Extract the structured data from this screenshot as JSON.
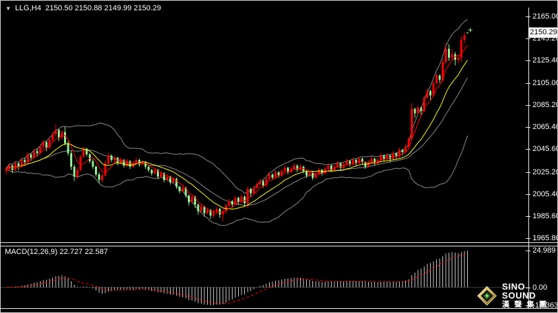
{
  "title": {
    "dropdown_icon": "▼",
    "symbol": "LLG,H4",
    "ohlc": "2150.50 2150.88 2149.99 2150.29"
  },
  "price_axis": {
    "ticks": [
      "2165.00",
      "2145.20",
      "2125.40",
      "2105.00",
      "2085.20",
      "2065.40",
      "2045.60",
      "2025.20",
      "2005.40",
      "1985.60",
      "1965.80"
    ],
    "current_price": "2150.29"
  },
  "macd_panel": {
    "label": "MACD(12,26,9) 22.727 22.587",
    "axis": {
      "max": "24.989",
      "zero": "0.00",
      "min": "-12.363"
    }
  },
  "logo": {
    "name": "SINO SOUND",
    "cn": "漢聲集團"
  },
  "colors": {
    "background": "#000000",
    "bull_candle": "#ff0000",
    "bear_candle": "#90ee90",
    "band": "#8a8a8a",
    "ma_fast": "#ff0000",
    "ma_slow": "#ffff00",
    "macd_histogram": "#c8c8c8",
    "macd_signal": "#ff0000",
    "axis_text": "#ffffff",
    "badge_bg": "#ffffff",
    "badge_text": "#000000"
  },
  "chart_data": {
    "type": "candlestick",
    "symbol": "LLG",
    "timeframe": "H4",
    "last_bar": {
      "open": 2150.5,
      "high": 2150.88,
      "low": 2149.99,
      "close": 2150.29
    },
    "y_axis_ticks": [
      2165.0,
      2145.2,
      2125.4,
      2105.0,
      2085.2,
      2065.4,
      2045.6,
      2025.2,
      2005.4,
      1985.6,
      1965.8
    ],
    "y_range": [
      1962,
      2173
    ],
    "overlays": [
      {
        "name": "bollinger-bands",
        "period": 20,
        "deviation": 2,
        "color": "#8a8a8a"
      },
      {
        "name": "ma-fast",
        "period": 5,
        "color": "#ff0000"
      },
      {
        "name": "ma-slow",
        "period": 13,
        "color": "#ffff00"
      }
    ],
    "indicator": {
      "type": "macd",
      "fast": 12,
      "slow": 26,
      "signal": 9,
      "macd_value": 22.727,
      "signal_value": 22.587,
      "scale_max": 24.989,
      "scale_min": -12.363,
      "histogram_color": "#c8c8c8",
      "signal_color": "#ff0000"
    },
    "candles": [
      [
        2026,
        2030,
        2023,
        2028
      ],
      [
        2028,
        2033,
        2026,
        2031
      ],
      [
        2031,
        2032,
        2024,
        2027
      ],
      [
        2027,
        2035,
        2026,
        2033
      ],
      [
        2033,
        2034,
        2027,
        2030
      ],
      [
        2030,
        2038,
        2029,
        2036
      ],
      [
        2036,
        2038,
        2031,
        2034
      ],
      [
        2034,
        2043,
        2033,
        2041
      ],
      [
        2041,
        2042,
        2035,
        2038
      ],
      [
        2038,
        2046,
        2037,
        2044
      ],
      [
        2044,
        2046,
        2039,
        2042
      ],
      [
        2042,
        2050,
        2041,
        2048
      ],
      [
        2048,
        2054,
        2046,
        2052
      ],
      [
        2052,
        2053,
        2044,
        2047
      ],
      [
        2047,
        2056,
        2046,
        2054
      ],
      [
        2054,
        2061,
        2052,
        2059
      ],
      [
        2059,
        2068,
        2057,
        2063
      ],
      [
        2063,
        2064,
        2053,
        2056
      ],
      [
        2056,
        2063,
        2054,
        2061
      ],
      [
        2061,
        2066,
        2049,
        2051
      ],
      [
        2051,
        2053,
        2040,
        2042
      ],
      [
        2042,
        2044,
        2027,
        2030
      ],
      [
        2030,
        2032,
        2017,
        2021
      ],
      [
        2021,
        2029,
        2019,
        2027
      ],
      [
        2027,
        2041,
        2026,
        2039
      ],
      [
        2039,
        2048,
        2038,
        2046
      ],
      [
        2046,
        2047,
        2039,
        2041
      ],
      [
        2041,
        2042,
        2033,
        2035
      ],
      [
        2035,
        2037,
        2028,
        2030
      ],
      [
        2030,
        2031,
        2021,
        2023
      ],
      [
        2023,
        2025,
        2015,
        2018
      ],
      [
        2018,
        2024,
        2016,
        2022
      ],
      [
        2022,
        2035,
        2021,
        2033
      ],
      [
        2033,
        2042,
        2032,
        2040
      ],
      [
        2040,
        2041,
        2034,
        2036
      ],
      [
        2036,
        2040,
        2034,
        2038
      ],
      [
        2038,
        2039,
        2031,
        2033
      ],
      [
        2033,
        2038,
        2032,
        2036
      ],
      [
        2036,
        2037,
        2029,
        2031
      ],
      [
        2031,
        2037,
        2030,
        2035
      ],
      [
        2035,
        2036,
        2028,
        2030
      ],
      [
        2030,
        2035,
        2029,
        2033
      ],
      [
        2033,
        2038,
        2032,
        2036
      ],
      [
        2036,
        2037,
        2030,
        2032
      ],
      [
        2032,
        2036,
        2031,
        2034
      ],
      [
        2034,
        2035,
        2028,
        2030
      ],
      [
        2030,
        2031,
        2025,
        2027
      ],
      [
        2027,
        2028,
        2022,
        2024
      ],
      [
        2024,
        2029,
        2023,
        2027
      ],
      [
        2027,
        2028,
        2019,
        2021
      ],
      [
        2021,
        2026,
        2020,
        2024
      ],
      [
        2024,
        2025,
        2016,
        2018
      ],
      [
        2018,
        2023,
        2017,
        2021
      ],
      [
        2021,
        2022,
        2014,
        2016
      ],
      [
        2016,
        2021,
        2015,
        2019
      ],
      [
        2019,
        2020,
        2010,
        2012
      ],
      [
        2012,
        2013,
        2006,
        2008
      ],
      [
        2008,
        2013,
        2007,
        2011
      ],
      [
        2011,
        2012,
        2002,
        2004
      ],
      [
        2004,
        2005,
        1995,
        1998
      ],
      [
        1998,
        2005,
        1997,
        2003
      ],
      [
        2003,
        2004,
        1993,
        1996
      ],
      [
        1996,
        1997,
        1987,
        1990
      ],
      [
        1990,
        1996,
        1989,
        1994
      ],
      [
        1994,
        1995,
        1985,
        1988
      ],
      [
        1988,
        1993,
        1987,
        1991
      ],
      [
        1991,
        1992,
        1983,
        1986
      ],
      [
        1986,
        1991,
        1984,
        1989
      ],
      [
        1989,
        1994,
        1987,
        1992
      ],
      [
        1992,
        1993,
        1984,
        1987
      ],
      [
        1987,
        1992,
        1981,
        1990
      ],
      [
        1990,
        1997,
        1988,
        1995
      ],
      [
        1995,
        2001,
        1994,
        1999
      ],
      [
        1999,
        2000,
        1993,
        1996
      ],
      [
        1996,
        2004,
        1995,
        2002
      ],
      [
        2002,
        2003,
        1996,
        1998
      ],
      [
        1998,
        2005,
        1997,
        2003
      ],
      [
        2003,
        2004,
        1994,
        1997
      ],
      [
        1997,
        2012,
        1993,
        2010
      ],
      [
        2010,
        2011,
        2003,
        2006
      ],
      [
        2006,
        2013,
        2005,
        2011
      ],
      [
        2011,
        2016,
        2010,
        2014
      ],
      [
        2014,
        2019,
        2013,
        2017
      ],
      [
        2017,
        2018,
        2011,
        2013
      ],
      [
        2013,
        2021,
        2012,
        2019
      ],
      [
        2019,
        2025,
        2018,
        2023
      ],
      [
        2023,
        2024,
        2018,
        2020
      ],
      [
        2020,
        2027,
        2019,
        2025
      ],
      [
        2025,
        2026,
        2020,
        2022
      ],
      [
        2022,
        2028,
        2021,
        2026
      ],
      [
        2026,
        2031,
        2025,
        2029
      ],
      [
        2029,
        2030,
        2023,
        2025
      ],
      [
        2025,
        2030,
        2024,
        2028
      ],
      [
        2028,
        2033,
        2027,
        2031
      ],
      [
        2031,
        2032,
        2025,
        2027
      ],
      [
        2027,
        2032,
        2026,
        2030
      ],
      [
        2030,
        2031,
        2024,
        2026
      ],
      [
        2026,
        2027,
        2020,
        2022
      ],
      [
        2022,
        2027,
        2021,
        2025
      ],
      [
        2025,
        2026,
        2018,
        2020
      ],
      [
        2020,
        2025,
        2019,
        2023
      ],
      [
        2023,
        2029,
        2022,
        2027
      ],
      [
        2027,
        2028,
        2022,
        2024
      ],
      [
        2024,
        2030,
        2023,
        2028
      ],
      [
        2028,
        2033,
        2027,
        2031
      ],
      [
        2031,
        2032,
        2025,
        2027
      ],
      [
        2027,
        2032,
        2026,
        2030
      ],
      [
        2030,
        2035,
        2029,
        2033
      ],
      [
        2033,
        2034,
        2027,
        2029
      ],
      [
        2029,
        2034,
        2028,
        2032
      ],
      [
        2032,
        2037,
        2031,
        2035
      ],
      [
        2035,
        2036,
        2030,
        2032
      ],
      [
        2032,
        2038,
        2031,
        2036
      ],
      [
        2036,
        2037,
        2031,
        2033
      ],
      [
        2033,
        2039,
        2032,
        2037
      ],
      [
        2037,
        2038,
        2032,
        2034
      ],
      [
        2034,
        2035,
        2028,
        2030
      ],
      [
        2030,
        2036,
        2029,
        2034
      ],
      [
        2034,
        2039,
        2033,
        2037
      ],
      [
        2037,
        2038,
        2031,
        2033
      ],
      [
        2033,
        2038,
        2032,
        2036
      ],
      [
        2036,
        2042,
        2035,
        2040
      ],
      [
        2040,
        2041,
        2035,
        2037
      ],
      [
        2037,
        2042,
        2036,
        2040
      ],
      [
        2040,
        2041,
        2034,
        2037
      ],
      [
        2037,
        2044,
        2036,
        2042
      ],
      [
        2042,
        2043,
        2037,
        2039
      ],
      [
        2039,
        2047,
        2038,
        2045
      ],
      [
        2045,
        2046,
        2040,
        2043
      ],
      [
        2043,
        2050,
        2042,
        2048
      ],
      [
        2048,
        2057,
        2047,
        2055
      ],
      [
        2055,
        2087,
        2054,
        2082
      ],
      [
        2082,
        2083,
        2074,
        2078
      ],
      [
        2078,
        2085,
        2077,
        2083
      ],
      [
        2083,
        2084,
        2076,
        2080
      ],
      [
        2080,
        2094,
        2079,
        2092
      ],
      [
        2092,
        2100,
        2091,
        2098
      ],
      [
        2098,
        2099,
        2090,
        2094
      ],
      [
        2094,
        2107,
        2093,
        2105
      ],
      [
        2105,
        2114,
        2104,
        2112
      ],
      [
        2112,
        2113,
        2105,
        2108
      ],
      [
        2108,
        2127,
        2106,
        2124
      ],
      [
        2124,
        2141,
        2122,
        2136
      ],
      [
        2136,
        2140,
        2125,
        2128
      ],
      [
        2128,
        2136,
        2126,
        2131
      ],
      [
        2131,
        2133,
        2121,
        2126
      ],
      [
        2126,
        2131,
        2123,
        2128
      ],
      [
        2128,
        2147,
        2124,
        2144
      ],
      [
        2144,
        2151,
        2141,
        2148
      ],
      [
        2150.5,
        2150.88,
        2149.99,
        2150.29
      ]
    ]
  }
}
